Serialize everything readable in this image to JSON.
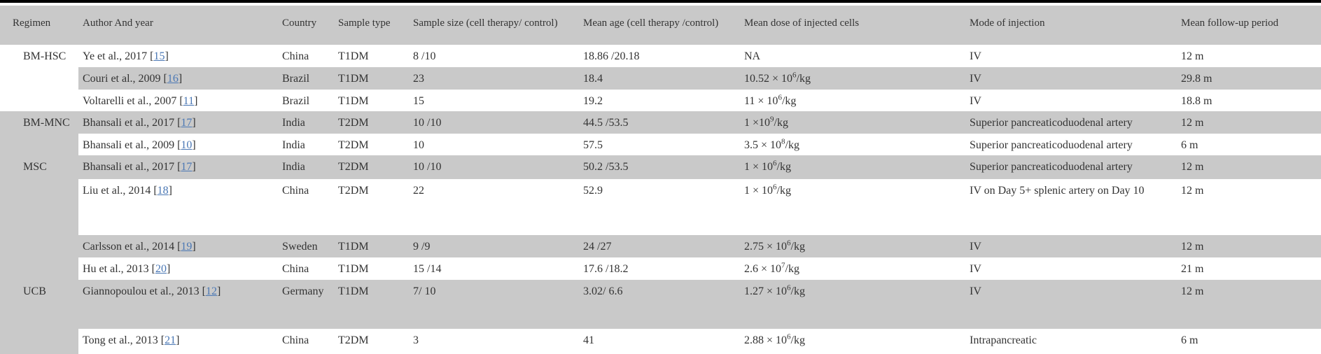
{
  "table": {
    "stripe_color": "#c9c9c9",
    "link_color": "#4a77b4",
    "text_color": "#333333",
    "columns": [
      "Regimen",
      "Author And year",
      "Country",
      "Sample type",
      "Sample size (cell therapy/ control)",
      "Mean age (cell therapy /control)",
      "Mean dose of injected cells",
      "Mode of injection",
      "Mean follow-up period"
    ],
    "rows": [
      {
        "regimen": {
          "label": "BM-HSC",
          "span": 3,
          "shaded": false
        },
        "author": {
          "prefix": "Ye et al., 2017 [",
          "ref": "15",
          "suffix": "]"
        },
        "country": "China",
        "sample_type": "T1DM",
        "sample_size": "8 /10",
        "mean_age": "18.86 /20.18",
        "dose": {
          "pre": "NA",
          "exp": "",
          "post": ""
        },
        "mode": "IV",
        "followup": "12 m",
        "shaded": false
      },
      {
        "author": {
          "prefix": "Couri et al., 2009 [",
          "ref": "16",
          "suffix": "]"
        },
        "country": "Brazil",
        "sample_type": "T1DM",
        "sample_size": "23",
        "mean_age": "18.4",
        "dose": {
          "pre": "10.52 × 10",
          "exp": "6",
          "post": "/kg"
        },
        "mode": "IV",
        "followup": "29.8 m",
        "shaded": true
      },
      {
        "author": {
          "prefix": "Voltarelli et al., 2007 [",
          "ref": "11",
          "suffix": "]"
        },
        "country": "Brazil",
        "sample_type": "T1DM",
        "sample_size": "15",
        "mean_age": "19.2",
        "dose": {
          "pre": "11 × 10",
          "exp": "6",
          "post": "/kg"
        },
        "mode": "IV",
        "followup": "18.8 m",
        "shaded": false
      },
      {
        "regimen": {
          "label": "BM-MNC",
          "span": 2,
          "shaded": true
        },
        "author": {
          "prefix": "Bhansali et al., 2017 [",
          "ref": "17",
          "suffix": "]"
        },
        "country": "India",
        "sample_type": "T2DM",
        "sample_size": "10 /10",
        "mean_age": "44.5 /53.5",
        "dose": {
          "pre": "1 ×10",
          "exp": "9",
          "post": "/kg"
        },
        "mode": "Superior pancreaticoduodenal artery",
        "followup": "12 m",
        "shaded": true
      },
      {
        "author": {
          "prefix": "Bhansali et al., 2009 [",
          "ref": "10",
          "suffix": "]"
        },
        "country": "India",
        "sample_type": "T2DM",
        "sample_size": "10",
        "mean_age": "57.5",
        "dose": {
          "pre": "3.5 ×  10",
          "exp": "8",
          "post": "/kg"
        },
        "mode": "Superior pancreaticoduodenal artery",
        "followup": "6 m",
        "shaded": false
      },
      {
        "regimen": {
          "label": "MSC",
          "span": 4,
          "shaded": true
        },
        "author": {
          "prefix": "Bhansali et al., 2017 [",
          "ref": "17",
          "suffix": "]"
        },
        "country": "India",
        "sample_type": "T2DM",
        "sample_size": "10 /10",
        "mean_age": "50.2 /53.5",
        "dose": {
          "pre": "1 × 10",
          "exp": "6",
          "post": "/kg"
        },
        "mode": "Superior pancreaticoduodenal artery",
        "followup": "12 m",
        "shaded": true
      },
      {
        "author": {
          "prefix": "Liu et al., 2014 [",
          "ref": "18",
          "suffix": "]"
        },
        "country": "China",
        "sample_type": "T2DM",
        "sample_size": "22",
        "mean_age": "52.9",
        "dose": {
          "pre": "1 × 10",
          "exp": "6",
          "post": "/kg"
        },
        "mode": "IV on Day 5+ splenic artery on Day 10",
        "followup": "12 m",
        "shaded": false
      },
      {
        "author": {
          "prefix": "Carlsson et al., 2014 [",
          "ref": "19",
          "suffix": "]"
        },
        "country": "Sweden",
        "sample_type": "T1DM",
        "sample_size": "9 /9",
        "mean_age": "24 /27",
        "dose": {
          "pre": "2.75  × 10",
          "exp": "6",
          "post": "/kg"
        },
        "mode": "IV",
        "followup": "12 m",
        "shaded": true
      },
      {
        "author": {
          "prefix": "Hu et al., 2013 [",
          "ref": "20",
          "suffix": "]"
        },
        "country": "China",
        "sample_type": "T1DM",
        "sample_size": "15 /14",
        "mean_age": "17.6 /18.2",
        "dose": {
          "pre": "2.6 × 10",
          "exp": "7",
          "post": "/kg"
        },
        "mode": "IV",
        "followup": "21 m",
        "shaded": false
      },
      {
        "regimen": {
          "label": "UCB",
          "span": 2,
          "shaded": true
        },
        "author": {
          "prefix": "Giannopoulou et al., 2013 [",
          "ref": "12",
          "suffix": "]"
        },
        "country": "Germany",
        "sample_type": "T1DM",
        "sample_size": "7/ 10",
        "mean_age": "3.02/ 6.6",
        "dose": {
          "pre": "1.27 × 10",
          "exp": "6",
          "post": "/kg"
        },
        "mode": "IV",
        "followup": "12 m",
        "shaded": true
      },
      {
        "author": {
          "prefix": "Tong et al., 2013 [",
          "ref": "21",
          "suffix": "]"
        },
        "country": "China",
        "sample_type": "T2DM",
        "sample_size": "3",
        "mean_age": "41",
        "dose": {
          "pre": "2.88 × 10",
          "exp": "6",
          "post": "/kg"
        },
        "mode": "Intrapancreatic",
        "followup": "6 m",
        "shaded": false
      }
    ]
  }
}
